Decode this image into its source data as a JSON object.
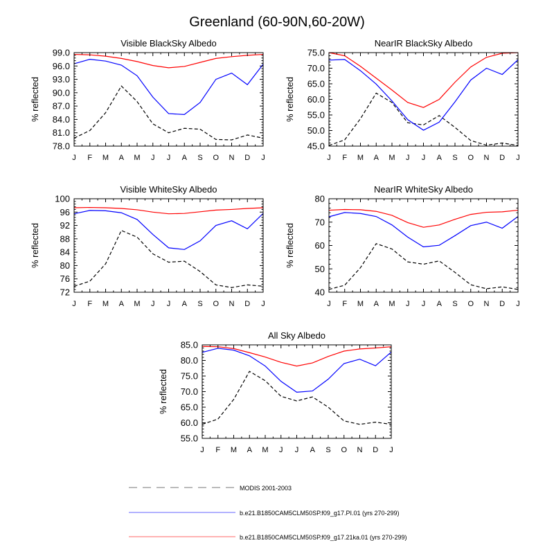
{
  "title": "Greenland (60-90N,60-20W)",
  "ylabel": "% reflected",
  "legend": [
    {
      "label": "MODIS 2001-2003",
      "color": "#000000",
      "dash": true
    },
    {
      "label": "b.e21.B1850CAM5CLM50SP.f09_g17.PI.01 (yrs 270-299)",
      "color": "#0000ff",
      "dash": false
    },
    {
      "label": "b.e21.B1850CAM5CLM50SP.f09_g17.21ka.01 (yrs 270-299)",
      "color": "#ff0000",
      "dash": false
    }
  ],
  "colors": {
    "modis": "#000000",
    "pi": "#0000ff",
    "ka": "#ff0000"
  },
  "chart_data": [
    {
      "type": "line",
      "title": "Visible BlackSky Albedo",
      "ylabel": "% reflected",
      "categories": [
        "J",
        "F",
        "M",
        "A",
        "M",
        "J",
        "J",
        "A",
        "S",
        "O",
        "N",
        "D",
        "J"
      ],
      "ylim": [
        78.0,
        99.0
      ],
      "yticks": [
        "78.0",
        "81.0",
        "84.0",
        "87.0",
        "90.0",
        "93.0",
        "96.0",
        "99.0"
      ],
      "series": [
        {
          "name": "MODIS 2001-2003",
          "values": [
            79.8,
            81.5,
            85.5,
            91.5,
            88.0,
            83.0,
            81.0,
            82.0,
            81.8,
            79.5,
            79.4,
            80.5,
            79.8
          ]
        },
        {
          "name": "b.e21.B1850CAM5CLM50SP.f09_g17.PI.01 (yrs 270-299)",
          "values": [
            96.5,
            97.5,
            97.1,
            96.2,
            93.8,
            89.0,
            85.3,
            85.1,
            87.8,
            93.0,
            94.4,
            91.8,
            96.4
          ]
        },
        {
          "name": "b.e21.B1850CAM5CLM50SP.f09_g17.21ka.01 (yrs 270-299)",
          "values": [
            98.6,
            98.5,
            98.2,
            97.7,
            97.0,
            96.1,
            95.6,
            95.9,
            96.8,
            97.7,
            98.1,
            98.4,
            98.6
          ]
        }
      ]
    },
    {
      "type": "line",
      "title": "NearIR BlackSky Albedo",
      "ylabel": "% reflected",
      "categories": [
        "J",
        "F",
        "M",
        "A",
        "M",
        "J",
        "J",
        "A",
        "S",
        "O",
        "N",
        "D",
        "J"
      ],
      "ylim": [
        45.0,
        75.0
      ],
      "yticks": [
        "45.0",
        "50.0",
        "55.0",
        "60.0",
        "65.0",
        "70.0",
        "75.0"
      ],
      "series": [
        {
          "name": "MODIS 2001-2003",
          "values": [
            45.2,
            47.0,
            53.8,
            62.0,
            59.0,
            52.5,
            51.8,
            54.8,
            51.0,
            46.8,
            45.3,
            46.0,
            45.2
          ]
        },
        {
          "name": "b.e21.B1850CAM5CLM50SP.f09_g17.PI.01 (yrs 270-299)",
          "values": [
            72.6,
            72.8,
            69.2,
            64.9,
            59.5,
            53.5,
            50.1,
            52.7,
            59.2,
            66.2,
            70.0,
            68.0,
            72.7
          ]
        },
        {
          "name": "b.e21.B1850CAM5CLM50SP.f09_g17.21ka.01 (yrs 270-299)",
          "values": [
            75.0,
            74.0,
            70.6,
            66.8,
            63.0,
            59.0,
            57.4,
            60.0,
            65.5,
            70.4,
            73.5,
            74.8,
            75.0
          ]
        }
      ]
    },
    {
      "type": "line",
      "title": "Visible WhiteSky Albedo",
      "ylabel": "% reflected",
      "categories": [
        "J",
        "F",
        "M",
        "A",
        "M",
        "J",
        "J",
        "A",
        "S",
        "O",
        "N",
        "D",
        "J"
      ],
      "ylim": [
        72,
        100
      ],
      "yticks": [
        "72",
        "76",
        "80",
        "84",
        "88",
        "92",
        "96",
        "100"
      ],
      "series": [
        {
          "name": "MODIS 2001-2003",
          "values": [
            73.8,
            75.3,
            80.5,
            90.5,
            88.5,
            83.5,
            81.0,
            81.3,
            78.2,
            74.2,
            73.4,
            74.2,
            73.8
          ]
        },
        {
          "name": "b.e21.B1850CAM5CLM50SP.f09_g17.PI.01 (yrs 270-299)",
          "values": [
            95.5,
            96.5,
            96.4,
            95.8,
            93.8,
            89.3,
            85.3,
            84.8,
            87.4,
            92.0,
            93.4,
            91.0,
            95.6
          ]
        },
        {
          "name": "b.e21.B1850CAM5CLM50SP.f09_g17.21ka.01 (yrs 270-299)",
          "values": [
            97.3,
            97.4,
            97.3,
            97.1,
            96.7,
            96.0,
            95.5,
            95.6,
            96.1,
            96.6,
            96.8,
            97.1,
            97.3
          ]
        }
      ]
    },
    {
      "type": "line",
      "title": "NearIR WhiteSky Albedo",
      "ylabel": "% reflected",
      "categories": [
        "J",
        "F",
        "M",
        "A",
        "M",
        "J",
        "J",
        "A",
        "S",
        "O",
        "N",
        "D",
        "J"
      ],
      "ylim": [
        40,
        80
      ],
      "yticks": [
        "40",
        "50",
        "60",
        "70",
        "80"
      ],
      "series": [
        {
          "name": "MODIS 2001-2003",
          "values": [
            41.2,
            43.0,
            50.5,
            60.8,
            58.5,
            53.0,
            52.0,
            53.4,
            48.5,
            43.2,
            41.5,
            42.3,
            41.2
          ]
        },
        {
          "name": "b.e21.B1850CAM5CLM50SP.f09_g17.PI.01 (yrs 270-299)",
          "values": [
            72.3,
            74.1,
            73.7,
            72.4,
            68.8,
            63.6,
            59.4,
            60.1,
            64.2,
            68.5,
            70.0,
            67.4,
            72.4
          ]
        },
        {
          "name": "b.e21.B1850CAM5CLM50SP.f09_g17.21ka.01 (yrs 270-299)",
          "values": [
            75.1,
            75.4,
            75.3,
            74.6,
            72.9,
            69.8,
            67.8,
            68.8,
            71.2,
            73.3,
            74.2,
            74.4,
            75.1
          ]
        }
      ]
    },
    {
      "type": "line",
      "title": "All Sky Albedo",
      "ylabel": "% reflected",
      "categories": [
        "J",
        "F",
        "M",
        "A",
        "M",
        "J",
        "J",
        "A",
        "S",
        "O",
        "N",
        "D",
        "J"
      ],
      "ylim": [
        55.0,
        85.0
      ],
      "yticks": [
        "55.0",
        "60.0",
        "65.0",
        "70.0",
        "75.0",
        "80.0",
        "85.0"
      ],
      "series": [
        {
          "name": "MODIS 2001-2003",
          "values": [
            59.5,
            61.2,
            67.5,
            76.5,
            73.5,
            68.5,
            67.0,
            68.3,
            65.0,
            60.6,
            59.5,
            60.2,
            59.5
          ]
        },
        {
          "name": "b.e21.B1850CAM5CLM50SP.f09_g17.PI.01 (yrs 270-299)",
          "values": [
            82.6,
            83.9,
            83.3,
            81.5,
            78.2,
            73.3,
            69.8,
            70.2,
            74.0,
            79.0,
            80.4,
            78.3,
            82.7
          ]
        },
        {
          "name": "b.e21.B1850CAM5CLM50SP.f09_g17.21ka.01 (yrs 270-299)",
          "values": [
            84.5,
            84.4,
            83.8,
            82.5,
            81.1,
            79.4,
            78.2,
            79.2,
            81.3,
            83.0,
            83.7,
            84.0,
            84.4
          ]
        }
      ]
    }
  ]
}
